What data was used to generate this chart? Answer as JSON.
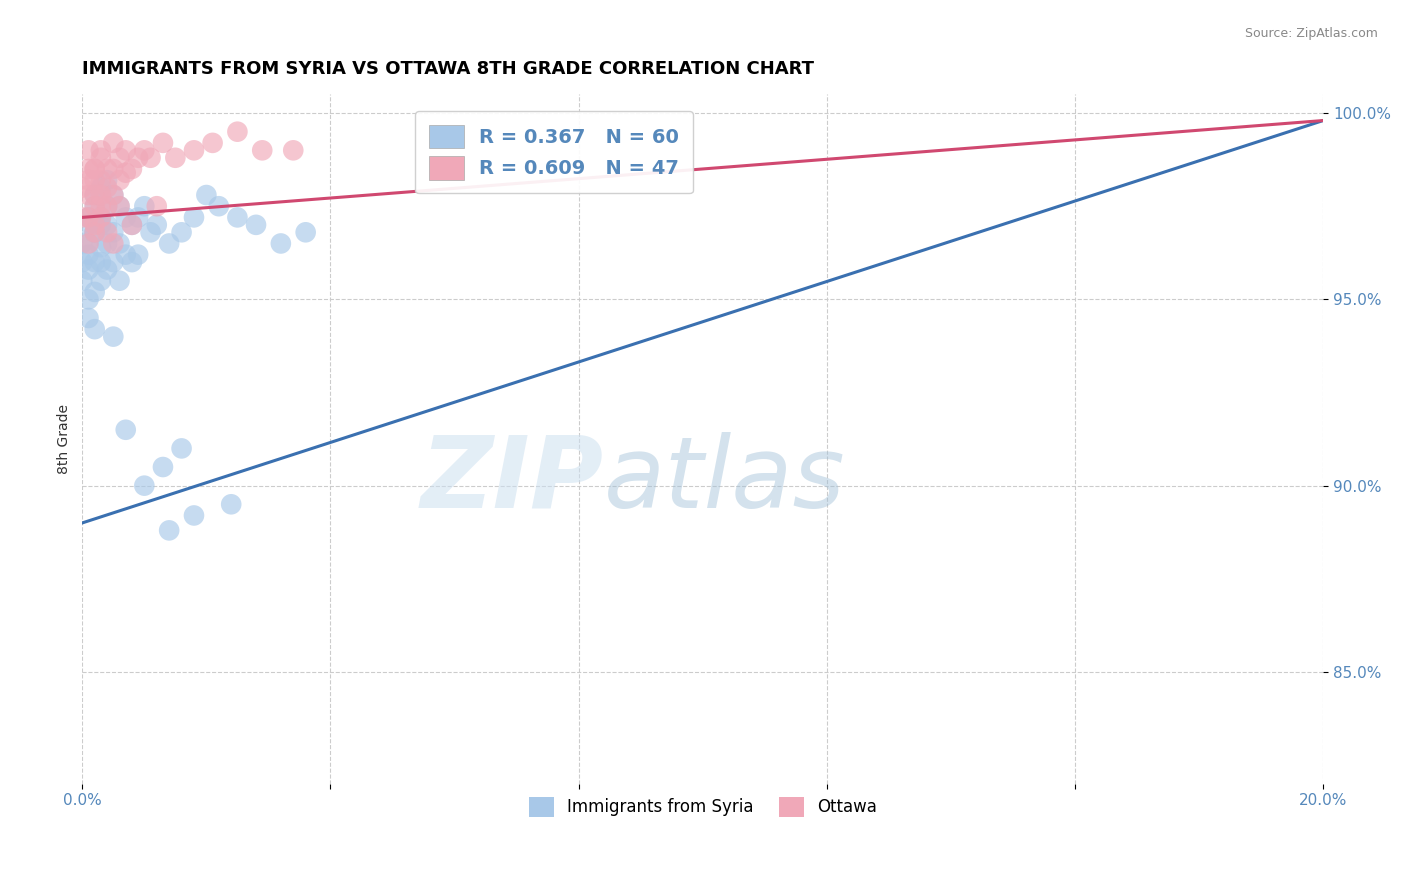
{
  "title": "IMMIGRANTS FROM SYRIA VS OTTAWA 8TH GRADE CORRELATION CHART",
  "source_text": "Source: ZipAtlas.com",
  "ylabel": "8th Grade",
  "xlim": [
    0.0,
    0.2
  ],
  "ylim": [
    0.82,
    1.005
  ],
  "yticks": [
    0.85,
    0.9,
    0.95,
    1.0
  ],
  "ytick_labels": [
    "85.0%",
    "90.0%",
    "95.0%",
    "100.0%"
  ],
  "xticks": [
    0.0,
    0.04,
    0.08,
    0.12,
    0.16,
    0.2
  ],
  "xtick_labels": [
    "0.0%",
    "",
    "",
    "",
    "",
    "20.0%"
  ],
  "blue_x": [
    0.0,
    0.0,
    0.0,
    0.001,
    0.001,
    0.001,
    0.001,
    0.001,
    0.001,
    0.001,
    0.002,
    0.002,
    0.002,
    0.002,
    0.002,
    0.002,
    0.002,
    0.003,
    0.003,
    0.003,
    0.003,
    0.003,
    0.003,
    0.004,
    0.004,
    0.004,
    0.004,
    0.004,
    0.005,
    0.005,
    0.005,
    0.006,
    0.006,
    0.006,
    0.007,
    0.007,
    0.008,
    0.008,
    0.009,
    0.009,
    0.01,
    0.011,
    0.012,
    0.014,
    0.016,
    0.018,
    0.02,
    0.022,
    0.025,
    0.028,
    0.032,
    0.036,
    0.014,
    0.018,
    0.024,
    0.01,
    0.013,
    0.016,
    0.007,
    0.005
  ],
  "blue_y": [
    0.96,
    0.955,
    0.965,
    0.97,
    0.962,
    0.958,
    0.95,
    0.972,
    0.965,
    0.945,
    0.975,
    0.968,
    0.96,
    0.952,
    0.968,
    0.942,
    0.978,
    0.972,
    0.964,
    0.955,
    0.98,
    0.97,
    0.96,
    0.975,
    0.965,
    0.958,
    0.982,
    0.97,
    0.968,
    0.978,
    0.96,
    0.975,
    0.965,
    0.955,
    0.972,
    0.962,
    0.97,
    0.96,
    0.972,
    0.962,
    0.975,
    0.968,
    0.97,
    0.965,
    0.968,
    0.972,
    0.978,
    0.975,
    0.972,
    0.97,
    0.965,
    0.968,
    0.888,
    0.892,
    0.895,
    0.9,
    0.905,
    0.91,
    0.915,
    0.94
  ],
  "pink_x": [
    0.0,
    0.0,
    0.001,
    0.001,
    0.001,
    0.001,
    0.001,
    0.002,
    0.002,
    0.002,
    0.002,
    0.002,
    0.003,
    0.003,
    0.003,
    0.003,
    0.004,
    0.004,
    0.004,
    0.005,
    0.005,
    0.005,
    0.006,
    0.006,
    0.007,
    0.007,
    0.008,
    0.009,
    0.01,
    0.011,
    0.013,
    0.015,
    0.018,
    0.021,
    0.025,
    0.029,
    0.034,
    0.005,
    0.008,
    0.012,
    0.003,
    0.004,
    0.006,
    0.002,
    0.003,
    0.001,
    0.002
  ],
  "pink_y": [
    0.98,
    0.972,
    0.985,
    0.978,
    0.972,
    0.965,
    0.99,
    0.982,
    0.975,
    0.968,
    0.985,
    0.978,
    0.99,
    0.982,
    0.975,
    0.988,
    0.98,
    0.975,
    0.985,
    0.992,
    0.985,
    0.978,
    0.988,
    0.982,
    0.99,
    0.984,
    0.985,
    0.988,
    0.99,
    0.988,
    0.992,
    0.988,
    0.99,
    0.992,
    0.995,
    0.99,
    0.99,
    0.965,
    0.97,
    0.975,
    0.972,
    0.968,
    0.975,
    0.985,
    0.978,
    0.982,
    0.97
  ],
  "blue_line_x0": 0.0,
  "blue_line_y0": 0.89,
  "blue_line_x1": 0.2,
  "blue_line_y1": 0.998,
  "pink_line_x0": 0.0,
  "pink_line_y0": 0.972,
  "pink_line_x1": 0.2,
  "pink_line_y1": 0.998,
  "blue_color": "#a8c8e8",
  "blue_line_color": "#3a70b0",
  "pink_color": "#f0a8b8",
  "pink_line_color": "#d04870",
  "legend_blue_label": "R = 0.367   N = 60",
  "legend_pink_label": "R = 0.609   N = 47",
  "bottom_legend_blue": "Immigrants from Syria",
  "bottom_legend_pink": "Ottawa",
  "watermark_zip": "ZIP",
  "watermark_atlas": "atlas",
  "background_color": "#ffffff",
  "grid_color": "#cccccc",
  "title_fontsize": 13,
  "axis_label_fontsize": 10,
  "tick_fontsize": 11,
  "legend_fontsize": 14
}
